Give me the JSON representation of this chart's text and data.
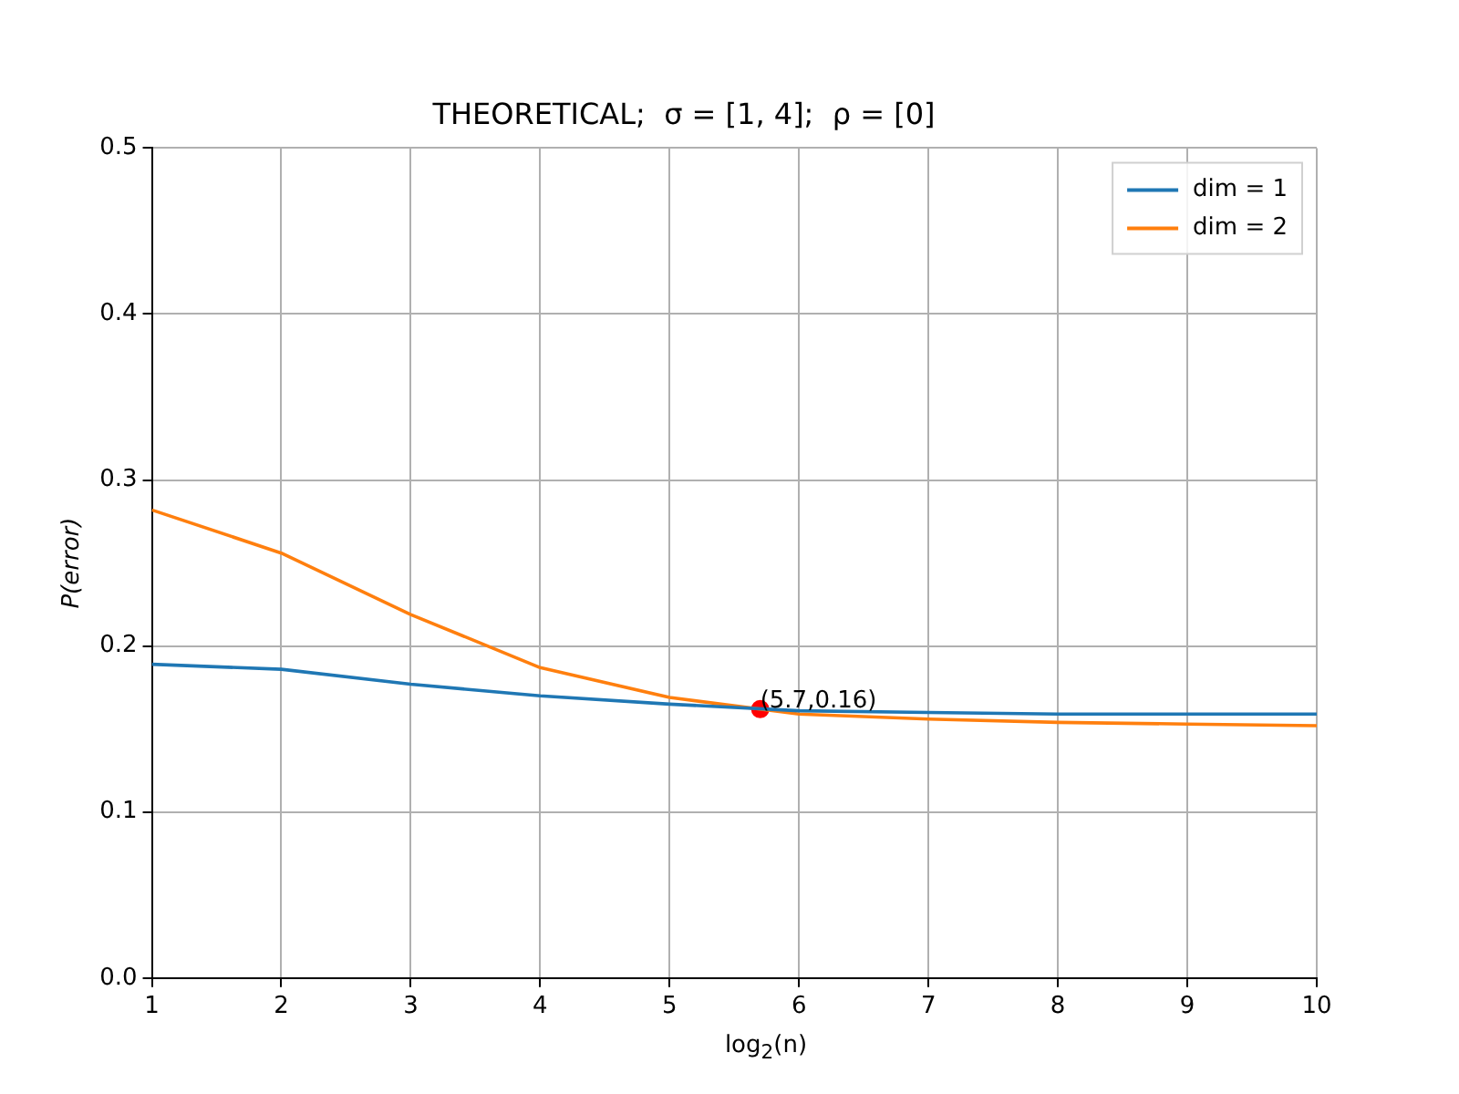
{
  "chart_data": {
    "type": "line",
    "title": "THEORETICAL;  σ = [1, 4];  ρ = [0]",
    "xlabel": "log$_{2}$(n)",
    "ylabel": "P(error)",
    "x": [
      1,
      2,
      3,
      4,
      5,
      6,
      7,
      8,
      9,
      10
    ],
    "series": [
      {
        "name": "dim = 1",
        "color": "#1f77b4",
        "values": [
          0.189,
          0.186,
          0.177,
          0.17,
          0.165,
          0.161,
          0.16,
          0.159,
          0.159,
          0.159
        ]
      },
      {
        "name": "dim = 2",
        "color": "#ff7f0e",
        "values": [
          0.282,
          0.256,
          0.219,
          0.187,
          0.169,
          0.159,
          0.156,
          0.154,
          0.153,
          0.152
        ]
      },
      {
        "type": "scatter",
        "color": "#ff0000",
        "marker": "circle",
        "x": [
          5.7
        ],
        "values": [
          0.162
        ]
      }
    ],
    "annotations": [
      {
        "text": "(5.7,0.16)",
        "x": 5.7,
        "y": 0.162
      }
    ],
    "xlim": [
      1,
      10
    ],
    "xticks": [
      1,
      2,
      3,
      4,
      5,
      6,
      7,
      8,
      9,
      10
    ],
    "ylim": [
      0,
      0.5
    ],
    "yticks": [
      {
        "value": 0,
        "label": "0.0"
      },
      0.1,
      0.2,
      0.3,
      0.4,
      0.5
    ],
    "grid": true,
    "legend": "top right",
    "line_style": "solid"
  }
}
